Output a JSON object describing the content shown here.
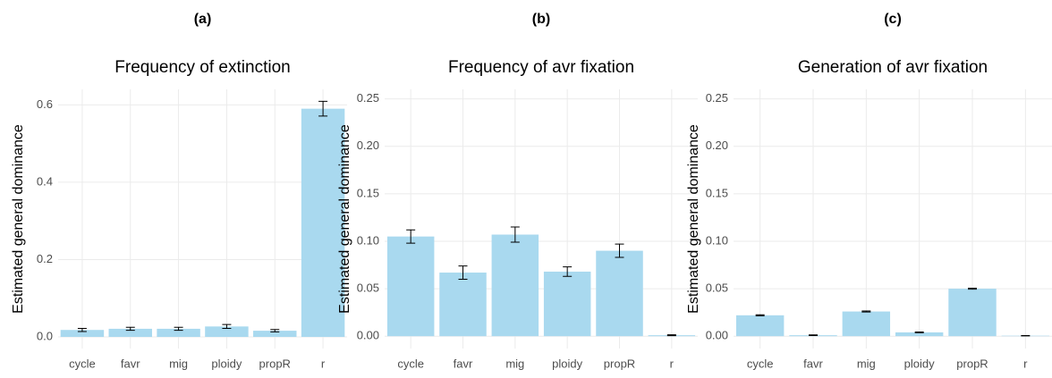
{
  "chart_data": [
    {
      "type": "bar",
      "panel_label": "(a)",
      "title": "Frequency of extinction",
      "y_label": "Estimated general dominance",
      "categories": [
        "cycle",
        "favr",
        "mig",
        "ploidy",
        "propR",
        "r"
      ],
      "values": [
        0.018,
        0.021,
        0.021,
        0.027,
        0.016,
        0.59
      ],
      "errors": [
        0.004,
        0.004,
        0.004,
        0.005,
        0.003,
        0.019
      ],
      "color": "#a9d9ef",
      "ylim": [
        -0.03,
        0.64
      ],
      "yticks": [
        {
          "value": 0,
          "label": "0.0"
        },
        0.2,
        0.4,
        0.6
      ],
      "grid": true
    },
    {
      "type": "bar",
      "panel_label": "(b)",
      "title": "Frequency of avr fixation",
      "y_label": "Estimated general dominance",
      "categories": [
        "cycle",
        "favr",
        "mig",
        "ploidy",
        "propR",
        "r"
      ],
      "values": [
        0.105,
        0.067,
        0.107,
        0.068,
        0.09,
        0.001
      ],
      "errors": [
        0.007,
        0.007,
        0.008,
        0.005,
        0.007,
        0.0005
      ],
      "color": "#a9d9ef",
      "ylim": [
        -0.013,
        0.26
      ],
      "yticks": [
        {
          "value": 0,
          "label": "0.00"
        },
        0.05,
        {
          "value": 0.1,
          "label": "0.10"
        },
        0.15,
        {
          "value": 0.2,
          "label": "0.20"
        },
        0.25
      ],
      "grid": true
    },
    {
      "type": "bar",
      "panel_label": "(c)",
      "title": "Generation of avr fixation",
      "y_label": "Estimated general dominance",
      "categories": [
        "cycle",
        "favr",
        "mig",
        "ploidy",
        "propR",
        "r"
      ],
      "values": [
        0.022,
        0.001,
        0.026,
        0.004,
        0.05,
        0.0005
      ],
      "errors": [
        0.0005,
        0.0003,
        0.0005,
        0.0004,
        0.0005,
        0.0002
      ],
      "color": "#a9d9ef",
      "ylim": [
        -0.013,
        0.26
      ],
      "yticks": [
        {
          "value": 0,
          "label": "0.00"
        },
        0.05,
        {
          "value": 0.1,
          "label": "0.10"
        },
        0.15,
        {
          "value": 0.2,
          "label": "0.20"
        },
        0.25
      ],
      "grid": true
    }
  ]
}
